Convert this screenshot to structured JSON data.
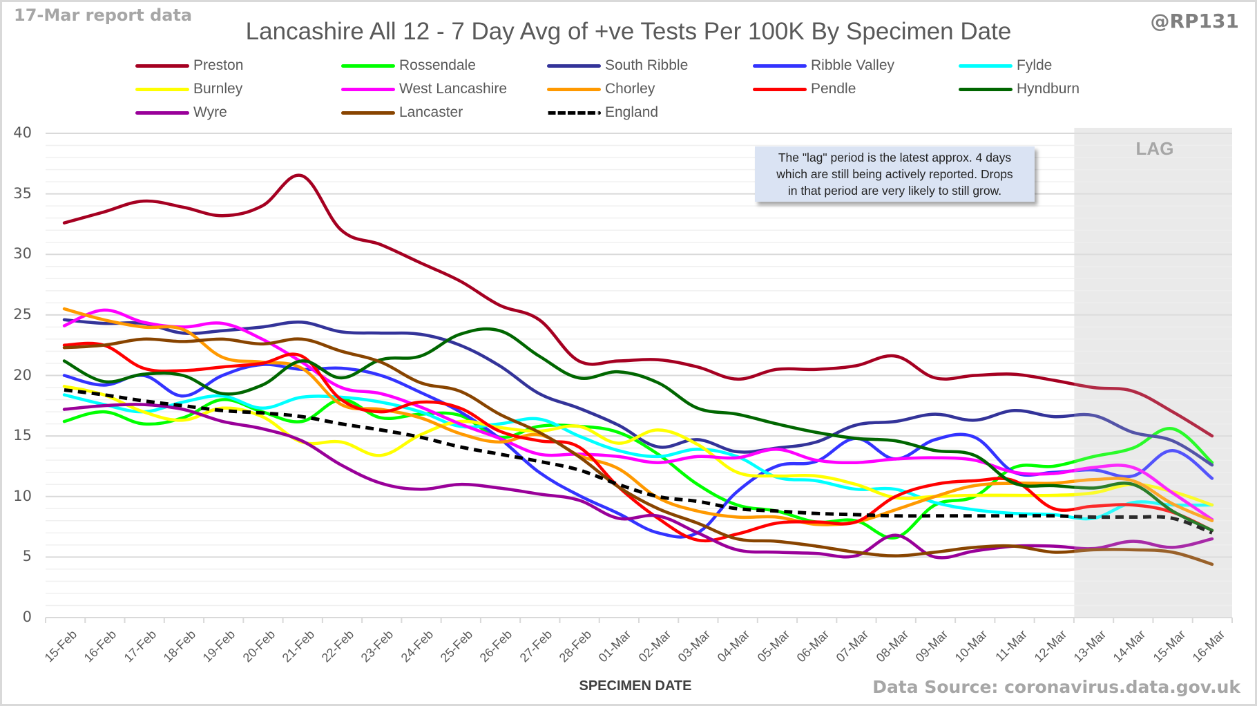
{
  "header": {
    "report_date": "17-Mar report data",
    "handle": "@RP131",
    "data_source": "Data Source: coronavirus.data.gov.uk"
  },
  "annotation": {
    "lag_label": "LAG",
    "note_lines": [
      "The \"lag\" period is the latest approx. 4 days",
      "which are still being actively reported.  Drops",
      "in that period are very likely to still grow."
    ]
  },
  "chart_data": {
    "type": "line",
    "title": "Lancashire All 12 - 7 Day Avg of +ve Tests Per 100K By Specimen Date",
    "xlabel": "SPECIMEN DATE",
    "ylabel": "",
    "ylim": [
      0,
      40
    ],
    "yticks": [
      "0",
      "5",
      "10",
      "15",
      "20",
      "25",
      "30",
      "35",
      "40"
    ],
    "grid": true,
    "legend_position": "top",
    "lag_start": "13-Mar",
    "lag_end": "16-Mar",
    "x": [
      "15-Feb",
      "16-Feb",
      "17-Feb",
      "18-Feb",
      "19-Feb",
      "20-Feb",
      "21-Feb",
      "22-Feb",
      "23-Feb",
      "24-Feb",
      "25-Feb",
      "26-Feb",
      "27-Feb",
      "28-Feb",
      "01-Mar",
      "02-Mar",
      "03-Mar",
      "04-Mar",
      "05-Mar",
      "06-Mar",
      "07-Mar",
      "08-Mar",
      "09-Mar",
      "10-Mar",
      "11-Mar",
      "12-Mar",
      "13-Mar",
      "14-Mar",
      "15-Mar",
      "16-Mar"
    ],
    "series": [
      {
        "name": "Preston",
        "color": "#a50021",
        "dashed": false,
        "values": [
          32.6,
          33.5,
          34.4,
          33.9,
          33.2,
          34.0,
          36.5,
          32.0,
          30.8,
          29.3,
          27.8,
          25.8,
          24.6,
          21.2,
          21.2,
          21.3,
          20.7,
          19.7,
          20.5,
          20.5,
          20.8,
          21.6,
          19.8,
          20.0,
          20.1,
          19.6,
          19.0,
          18.7,
          17.0,
          15.0
        ]
      },
      {
        "name": "Rossendale",
        "color": "#00ff00",
        "dashed": false,
        "values": [
          16.2,
          17.0,
          16.0,
          16.5,
          18.0,
          17.0,
          16.2,
          18.0,
          16.5,
          16.8,
          16.7,
          14.9,
          15.8,
          15.8,
          15.3,
          13.5,
          11.0,
          9.3,
          8.8,
          7.9,
          8.0,
          6.6,
          9.3,
          10.0,
          12.4,
          12.5,
          13.3,
          14.0,
          15.6,
          12.8
        ]
      },
      {
        "name": "South Ribble",
        "color": "#333399",
        "dashed": false,
        "values": [
          24.6,
          24.3,
          24.3,
          23.5,
          23.7,
          24.0,
          24.4,
          23.6,
          23.5,
          23.4,
          22.5,
          20.8,
          18.5,
          17.3,
          15.9,
          14.1,
          14.7,
          13.7,
          14.0,
          14.5,
          15.9,
          16.2,
          16.8,
          16.3,
          17.1,
          16.6,
          16.7,
          15.3,
          14.6,
          12.6
        ]
      },
      {
        "name": "Ribble Valley",
        "color": "#3333ff",
        "dashed": false,
        "values": [
          20.0,
          19.2,
          20.0,
          18.3,
          20.0,
          20.9,
          20.5,
          20.6,
          20.0,
          18.6,
          17.0,
          14.8,
          12.0,
          10.1,
          8.6,
          7.0,
          7.0,
          10.4,
          12.5,
          12.9,
          14.8,
          13.1,
          14.7,
          14.9,
          12.0,
          12.0,
          12.2,
          11.7,
          13.8,
          11.5
        ]
      },
      {
        "name": "Fylde",
        "color": "#00ffff",
        "dashed": false,
        "values": [
          18.4,
          17.6,
          17.0,
          17.8,
          18.3,
          17.3,
          18.2,
          18.2,
          17.8,
          17.0,
          15.8,
          16.0,
          16.4,
          15.0,
          13.8,
          13.3,
          13.9,
          13.3,
          11.6,
          11.3,
          10.6,
          10.6,
          9.5,
          8.9,
          8.6,
          8.5,
          8.2,
          9.5,
          9.3,
          9.3
        ]
      },
      {
        "name": "Burnley",
        "color": "#ffff00",
        "dashed": false,
        "values": [
          19.1,
          18.4,
          17.0,
          16.3,
          17.3,
          16.6,
          14.5,
          14.5,
          13.4,
          15.1,
          16.2,
          15.7,
          15.4,
          15.8,
          14.4,
          15.5,
          14.3,
          12.0,
          11.7,
          11.7,
          11.0,
          9.9,
          10.0,
          10.1,
          10.1,
          10.1,
          10.3,
          11.0,
          10.4,
          9.3
        ]
      },
      {
        "name": "West Lancashire",
        "color": "#ff00ff",
        "dashed": false,
        "values": [
          24.1,
          25.4,
          24.4,
          24.0,
          24.3,
          23.0,
          21.1,
          19.0,
          18.5,
          17.4,
          16.0,
          14.8,
          13.5,
          13.5,
          13.3,
          12.8,
          13.3,
          13.2,
          13.9,
          13.0,
          12.8,
          13.1,
          13.2,
          13.0,
          12.0,
          11.9,
          12.4,
          12.4,
          10.3,
          8.1
        ]
      },
      {
        "name": "Chorley",
        "color": "#ff9900",
        "dashed": false,
        "values": [
          25.5,
          24.6,
          24.0,
          23.8,
          21.5,
          21.1,
          20.6,
          17.6,
          17.2,
          16.5,
          15.2,
          14.5,
          15.1,
          13.4,
          12.3,
          9.9,
          8.8,
          8.3,
          8.3,
          7.7,
          7.9,
          8.9,
          10.0,
          10.9,
          11.1,
          11.1,
          11.4,
          11.3,
          9.4,
          8.0
        ]
      },
      {
        "name": "Pendle",
        "color": "#ff0000",
        "dashed": false,
        "values": [
          22.5,
          22.5,
          20.6,
          20.4,
          20.7,
          21.0,
          21.6,
          18.0,
          17.0,
          17.8,
          17.3,
          15.4,
          14.6,
          14.1,
          10.8,
          8.2,
          6.4,
          6.9,
          7.8,
          7.9,
          7.9,
          10.0,
          11.0,
          11.3,
          11.3,
          9.0,
          9.2,
          9.3,
          8.7,
          7.2
        ]
      },
      {
        "name": "Hyndburn",
        "color": "#006600",
        "dashed": false,
        "values": [
          21.2,
          19.5,
          20.1,
          20.0,
          18.5,
          19.2,
          21.2,
          19.8,
          21.3,
          21.6,
          23.4,
          23.7,
          21.6,
          19.8,
          20.3,
          19.4,
          17.3,
          16.8,
          16.0,
          15.3,
          14.8,
          14.6,
          13.8,
          13.4,
          11.1,
          10.9,
          10.7,
          11.0,
          8.8,
          7.2
        ]
      },
      {
        "name": "Wyre",
        "color": "#990099",
        "dashed": false,
        "values": [
          17.2,
          17.5,
          17.6,
          17.2,
          16.2,
          15.6,
          14.6,
          12.6,
          11.1,
          10.6,
          11.0,
          10.7,
          10.2,
          9.7,
          8.2,
          8.4,
          7.0,
          5.6,
          5.4,
          5.3,
          5.1,
          6.8,
          5.0,
          5.5,
          5.9,
          5.9,
          5.7,
          6.3,
          5.8,
          6.5
        ]
      },
      {
        "name": "Lancaster",
        "color": "#884400",
        "dashed": false,
        "values": [
          22.3,
          22.5,
          23.0,
          22.8,
          23.0,
          22.6,
          23.0,
          22.0,
          21.1,
          19.4,
          18.7,
          16.8,
          15.3,
          13.3,
          10.8,
          9.0,
          7.8,
          6.5,
          6.3,
          5.9,
          5.4,
          5.1,
          5.4,
          5.8,
          5.9,
          5.4,
          5.6,
          5.6,
          5.4,
          4.4
        ]
      },
      {
        "name": "England",
        "color": "#000000",
        "dashed": true,
        "values": [
          18.8,
          18.4,
          17.9,
          17.5,
          17.1,
          16.9,
          16.6,
          16.0,
          15.5,
          14.9,
          14.1,
          13.5,
          12.9,
          12.2,
          11.0,
          10.0,
          9.6,
          9.0,
          8.8,
          8.6,
          8.5,
          8.4,
          8.4,
          8.4,
          8.4,
          8.4,
          8.3,
          8.3,
          8.2,
          7.0
        ]
      }
    ]
  }
}
